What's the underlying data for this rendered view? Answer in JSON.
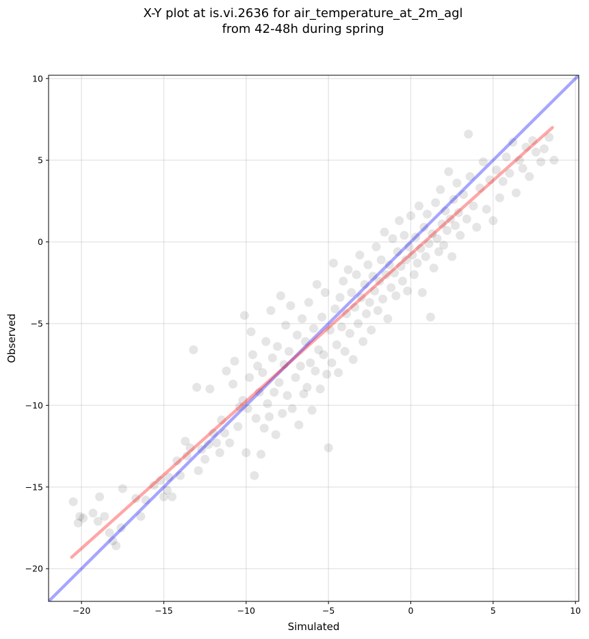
{
  "chart_data": {
    "type": "scatter",
    "title": "X-Y plot at is.vi.2636 for air_temperature_at_2m_agl",
    "subtitle": "from 42-48h during spring",
    "xlabel": "Simulated",
    "ylabel": "Observed",
    "xlim": [
      -22,
      10.2
    ],
    "ylim": [
      -22,
      10.2
    ],
    "xticks": [
      -20,
      -15,
      -10,
      -5,
      0,
      5,
      10
    ],
    "yticks": [
      -20,
      -15,
      -10,
      -5,
      0,
      5,
      10
    ],
    "xtick_labels": [
      "−20",
      "−15",
      "−10",
      "−5",
      "0",
      "5",
      "10"
    ],
    "ytick_labels": [
      "−20",
      "−15",
      "−10",
      "−5",
      "0",
      "5",
      "10"
    ],
    "grid": true,
    "series": [
      {
        "kind": "scatter",
        "color": "#000000",
        "alpha": 0.1,
        "values": [
          [
            -20.5,
            -15.9
          ],
          [
            -20.1,
            -16.8
          ],
          [
            -20.2,
            -17.2
          ],
          [
            -19.9,
            -16.9
          ],
          [
            -19.3,
            -16.6
          ],
          [
            -19.0,
            -17.1
          ],
          [
            -18.9,
            -15.6
          ],
          [
            -18.6,
            -16.8
          ],
          [
            -18.3,
            -17.8
          ],
          [
            -18.1,
            -18.3
          ],
          [
            -17.9,
            -18.6
          ],
          [
            -17.6,
            -17.5
          ],
          [
            -17.5,
            -15.1
          ],
          [
            -16.7,
            -15.7
          ],
          [
            -16.4,
            -16.8
          ],
          [
            -16.1,
            -15.8
          ],
          [
            -15.6,
            -14.9
          ],
          [
            -15.2,
            -14.6
          ],
          [
            -15.0,
            -15.6
          ],
          [
            -14.8,
            -15.2
          ],
          [
            -14.7,
            -14.4
          ],
          [
            -14.5,
            -15.6
          ],
          [
            -14.2,
            -13.4
          ],
          [
            -14.0,
            -14.3
          ],
          [
            -13.7,
            -12.2
          ],
          [
            -13.6,
            -13.1
          ],
          [
            -13.4,
            -12.6
          ],
          [
            -13.2,
            -6.6
          ],
          [
            -13.0,
            -8.9
          ],
          [
            -12.9,
            -14.0
          ],
          [
            -12.7,
            -12.7
          ],
          [
            -12.5,
            -13.3
          ],
          [
            -12.3,
            -12.4
          ],
          [
            -12.2,
            -9.0
          ],
          [
            -12.0,
            -11.7
          ],
          [
            -11.8,
            -12.3
          ],
          [
            -11.6,
            -12.9
          ],
          [
            -11.5,
            -10.9
          ],
          [
            -11.3,
            -11.7
          ],
          [
            -11.2,
            -7.9
          ],
          [
            -11.0,
            -12.3
          ],
          [
            -10.8,
            -8.7
          ],
          [
            -10.7,
            -7.3
          ],
          [
            -10.5,
            -11.3
          ],
          [
            -10.4,
            -10.1
          ],
          [
            -10.2,
            -9.7
          ],
          [
            -10.1,
            -4.5
          ],
          [
            -10.0,
            -12.9
          ],
          [
            -9.9,
            -10.2
          ],
          [
            -9.8,
            -8.3
          ],
          [
            -9.7,
            -5.5
          ],
          [
            -9.6,
            -6.9
          ],
          [
            -9.5,
            -14.3
          ],
          [
            -9.4,
            -10.8
          ],
          [
            -9.3,
            -7.6
          ],
          [
            -9.2,
            -9.2
          ],
          [
            -9.1,
            -13.0
          ],
          [
            -9.0,
            -8.0
          ],
          [
            -8.9,
            -11.4
          ],
          [
            -8.8,
            -6.1
          ],
          [
            -8.7,
            -9.9
          ],
          [
            -8.6,
            -10.7
          ],
          [
            -8.5,
            -4.2
          ],
          [
            -8.4,
            -7.1
          ],
          [
            -8.3,
            -9.2
          ],
          [
            -8.2,
            -11.8
          ],
          [
            -8.1,
            -6.4
          ],
          [
            -8.0,
            -8.6
          ],
          [
            -7.9,
            -3.3
          ],
          [
            -7.8,
            -10.5
          ],
          [
            -7.7,
            -7.5
          ],
          [
            -7.6,
            -5.1
          ],
          [
            -7.5,
            -9.4
          ],
          [
            -7.4,
            -6.7
          ],
          [
            -7.3,
            -3.9
          ],
          [
            -7.2,
            -10.2
          ],
          [
            -7.0,
            -8.3
          ],
          [
            -6.9,
            -5.7
          ],
          [
            -6.8,
            -11.2
          ],
          [
            -6.7,
            -7.6
          ],
          [
            -6.6,
            -4.7
          ],
          [
            -6.5,
            -9.3
          ],
          [
            -6.4,
            -6.1
          ],
          [
            -6.3,
            -8.9
          ],
          [
            -6.2,
            -3.7
          ],
          [
            -6.1,
            -7.4
          ],
          [
            -6.0,
            -10.3
          ],
          [
            -5.9,
            -5.3
          ],
          [
            -5.8,
            -7.9
          ],
          [
            -5.7,
            -2.6
          ],
          [
            -5.6,
            -6.6
          ],
          [
            -5.5,
            -9.0
          ],
          [
            -5.4,
            -4.6
          ],
          [
            -5.3,
            -6.9
          ],
          [
            -5.2,
            -3.1
          ],
          [
            -5.1,
            -8.1
          ],
          [
            -5.0,
            -12.6
          ],
          [
            -4.9,
            -5.4
          ],
          [
            -4.8,
            -7.4
          ],
          [
            -4.7,
            -1.3
          ],
          [
            -4.6,
            -4.1
          ],
          [
            -4.5,
            -6.3
          ],
          [
            -4.4,
            -8.0
          ],
          [
            -4.3,
            -3.4
          ],
          [
            -4.2,
            -5.2
          ],
          [
            -4.1,
            -2.4
          ],
          [
            -4.0,
            -6.7
          ],
          [
            -3.9,
            -4.4
          ],
          [
            -3.8,
            -1.7
          ],
          [
            -3.7,
            -5.6
          ],
          [
            -3.6,
            -3.1
          ],
          [
            -3.5,
            -7.2
          ],
          [
            -3.4,
            -4.0
          ],
          [
            -3.3,
            -2.0
          ],
          [
            -3.2,
            -5.0
          ],
          [
            -3.1,
            -0.8
          ],
          [
            -3.0,
            -3.4
          ],
          [
            -2.9,
            -6.1
          ],
          [
            -2.8,
            -2.6
          ],
          [
            -2.7,
            -4.4
          ],
          [
            -2.6,
            -1.4
          ],
          [
            -2.5,
            -3.7
          ],
          [
            -2.4,
            -5.4
          ],
          [
            -2.3,
            -2.1
          ],
          [
            -2.2,
            -3.0
          ],
          [
            -2.1,
            -0.3
          ],
          [
            -2.0,
            -4.2
          ],
          [
            -1.9,
            -2.4
          ],
          [
            -1.8,
            -1.1
          ],
          [
            -1.7,
            -3.5
          ],
          [
            -1.6,
            0.6
          ],
          [
            -1.5,
            -2.0
          ],
          [
            -1.4,
            -4.7
          ],
          [
            -1.3,
            -1.4
          ],
          [
            -1.2,
            -2.8
          ],
          [
            -1.1,
            0.2
          ],
          [
            -1.0,
            -1.9
          ],
          [
            -0.9,
            -3.3
          ],
          [
            -0.8,
            -0.6
          ],
          [
            -0.7,
            1.3
          ],
          [
            -0.6,
            -1.5
          ],
          [
            -0.5,
            -2.4
          ],
          [
            -0.4,
            0.4
          ],
          [
            -0.3,
            -1.1
          ],
          [
            -0.2,
            -3.0
          ],
          [
            -0.1,
            -0.3
          ],
          [
            0.0,
            1.6
          ],
          [
            0.1,
            -0.8
          ],
          [
            0.2,
            -2.0
          ],
          [
            0.3,
            0.3
          ],
          [
            0.4,
            -1.3
          ],
          [
            0.5,
            2.2
          ],
          [
            0.6,
            -0.4
          ],
          [
            0.7,
            -3.1
          ],
          [
            0.8,
            0.9
          ],
          [
            0.9,
            -0.9
          ],
          [
            1.0,
            1.7
          ],
          [
            1.1,
            -0.1
          ],
          [
            1.2,
            -4.6
          ],
          [
            1.3,
            0.5
          ],
          [
            1.4,
            -1.6
          ],
          [
            1.5,
            2.4
          ],
          [
            1.6,
            0.2
          ],
          [
            1.7,
            -0.6
          ],
          [
            1.8,
            3.2
          ],
          [
            1.9,
            1.1
          ],
          [
            2.0,
            -0.2
          ],
          [
            2.1,
            1.9
          ],
          [
            2.2,
            0.7
          ],
          [
            2.3,
            4.3
          ],
          [
            2.4,
            1.4
          ],
          [
            2.5,
            -0.9
          ],
          [
            2.6,
            2.6
          ],
          [
            2.7,
            1.0
          ],
          [
            2.8,
            3.6
          ],
          [
            2.9,
            1.8
          ],
          [
            3.0,
            0.4
          ],
          [
            3.2,
            2.9
          ],
          [
            3.4,
            1.4
          ],
          [
            3.5,
            6.6
          ],
          [
            3.6,
            4.0
          ],
          [
            3.8,
            2.2
          ],
          [
            4.0,
            0.9
          ],
          [
            4.2,
            3.3
          ],
          [
            4.4,
            4.9
          ],
          [
            4.6,
            2.0
          ],
          [
            4.8,
            3.8
          ],
          [
            5.0,
            1.3
          ],
          [
            5.2,
            4.4
          ],
          [
            5.4,
            2.7
          ],
          [
            5.6,
            3.7
          ],
          [
            5.8,
            5.2
          ],
          [
            6.0,
            4.2
          ],
          [
            6.2,
            6.1
          ],
          [
            6.4,
            3.0
          ],
          [
            6.6,
            5.0
          ],
          [
            6.8,
            4.5
          ],
          [
            7.0,
            5.8
          ],
          [
            7.2,
            4.0
          ],
          [
            7.4,
            6.2
          ],
          [
            7.6,
            5.5
          ],
          [
            7.9,
            4.9
          ],
          [
            8.1,
            5.7
          ],
          [
            8.4,
            6.4
          ],
          [
            8.7,
            5.0
          ]
        ]
      },
      {
        "kind": "line",
        "color": "#0000ff",
        "alpha": 0.35,
        "values": [
          [
            -22,
            -22
          ],
          [
            10.2,
            10.2
          ]
        ]
      },
      {
        "kind": "line",
        "color": "#ff0000",
        "alpha": 0.35,
        "values": [
          [
            -20.6,
            -19.3
          ],
          [
            8.6,
            7.0
          ]
        ]
      }
    ]
  }
}
